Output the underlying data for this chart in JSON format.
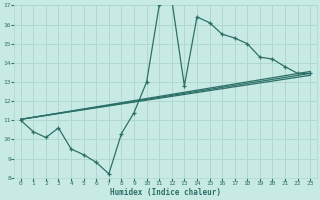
{
  "title": "",
  "xlabel": "Humidex (Indice chaleur)",
  "ylabel": "",
  "bg_color": "#c8eae4",
  "grid_color": "#b0d8d0",
  "line_color": "#2d7068",
  "xlim": [
    -0.5,
    23.5
  ],
  "ylim": [
    8,
    17
  ],
  "yticks": [
    8,
    9,
    10,
    11,
    12,
    13,
    14,
    15,
    16,
    17
  ],
  "xticks": [
    0,
    1,
    2,
    3,
    4,
    5,
    6,
    7,
    8,
    9,
    10,
    11,
    12,
    13,
    14,
    15,
    16,
    17,
    18,
    19,
    20,
    21,
    22,
    23
  ],
  "main_line_x": [
    0,
    1,
    2,
    3,
    4,
    5,
    6,
    7,
    8,
    9,
    10,
    11,
    12,
    13,
    14,
    15,
    16,
    17,
    18,
    19,
    20,
    21,
    22,
    23
  ],
  "main_line_y": [
    11.0,
    10.4,
    10.1,
    10.6,
    9.5,
    9.2,
    8.8,
    8.2,
    10.3,
    11.4,
    13.0,
    17.0,
    17.3,
    12.8,
    16.4,
    16.1,
    15.5,
    15.3,
    15.0,
    14.3,
    14.2,
    13.8,
    13.45,
    13.45
  ],
  "line2_x": [
    0,
    23
  ],
  "line2_y": [
    11.05,
    13.55
  ],
  "line3_x": [
    0,
    23
  ],
  "line3_y": [
    11.05,
    13.35
  ],
  "line4_x": [
    0,
    23
  ],
  "line4_y": [
    11.05,
    13.45
  ]
}
